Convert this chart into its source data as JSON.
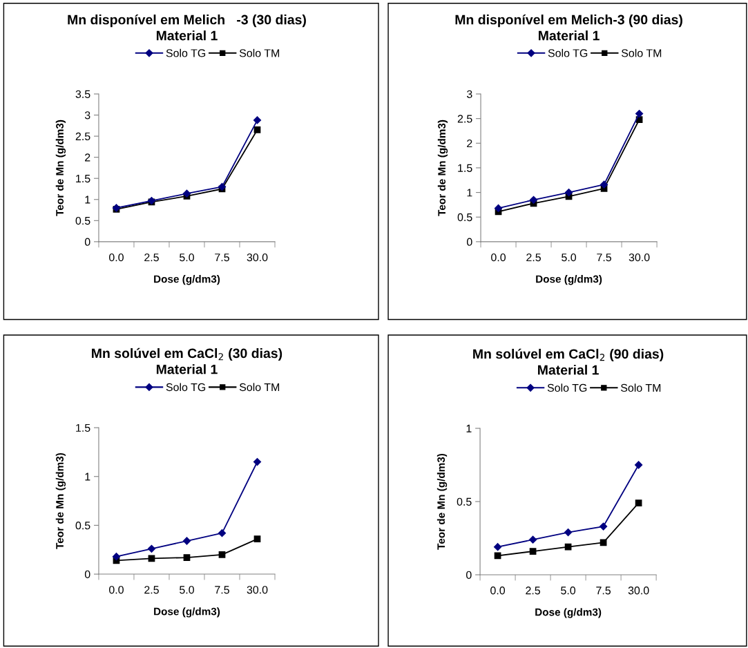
{
  "chart_data": [
    {
      "type": "line",
      "title": "Mn disponível em Melich   -3 (30 dias)\nMaterial 1",
      "xlabel": "Dose (g/dm3)",
      "ylabel": "Teor de Mn (g/dm3)",
      "categories": [
        "0.0",
        "2.5",
        "5.0",
        "7.5",
        "30.0"
      ],
      "ylim": [
        0,
        3.5
      ],
      "yticks": [
        0,
        0.5,
        1,
        1.5,
        2,
        2.5,
        3,
        3.5
      ],
      "grid": false,
      "legend": "top",
      "series": [
        {
          "name": "Solo TG",
          "color": "#000080",
          "marker": "diamond",
          "values": [
            0.8,
            0.97,
            1.14,
            1.3,
            2.88
          ]
        },
        {
          "name": "Solo TM",
          "color": "#000000",
          "marker": "square",
          "values": [
            0.77,
            0.94,
            1.08,
            1.25,
            2.65
          ]
        }
      ]
    },
    {
      "type": "line",
      "title": "Mn disponível em Melich-3 (90 dias)\nMaterial 1",
      "xlabel": "Dose (g/dm3)",
      "ylabel": "Teor de Mn (g/dm3)",
      "categories": [
        "0.0",
        "2.5",
        "5.0",
        "7.5",
        "30.0"
      ],
      "ylim": [
        0,
        3
      ],
      "yticks": [
        0,
        0.5,
        1,
        1.5,
        2,
        2.5,
        3
      ],
      "grid": false,
      "legend": "top",
      "series": [
        {
          "name": "Solo TG",
          "color": "#000080",
          "marker": "diamond",
          "values": [
            0.68,
            0.85,
            1.0,
            1.16,
            2.6
          ]
        },
        {
          "name": "Solo TM",
          "color": "#000000",
          "marker": "square",
          "values": [
            0.61,
            0.78,
            0.92,
            1.08,
            2.48
          ]
        }
      ]
    },
    {
      "type": "line",
      "title": "Mn solúvel em CaCl$_{2}$ (30 dias)\nMaterial 1",
      "xlabel": "Dose (g/dm3)",
      "ylabel": "Teor de Mn (g/dm3)",
      "categories": [
        "0.0",
        "2.5",
        "5.0",
        "7.5",
        "30.0"
      ],
      "ylim": [
        0,
        1.5
      ],
      "yticks": [
        0,
        0.5,
        1,
        1.5
      ],
      "grid": false,
      "legend": "top",
      "series": [
        {
          "name": "Solo TG",
          "color": "#000080",
          "marker": "diamond",
          "values": [
            0.18,
            0.26,
            0.34,
            0.42,
            1.15
          ]
        },
        {
          "name": "Solo TM",
          "color": "#000000",
          "marker": "square",
          "values": [
            0.14,
            0.16,
            0.17,
            0.2,
            0.36
          ]
        }
      ]
    },
    {
      "type": "line",
      "title": "Mn solúvel em CaCl$_{2}$ (90 dias)\nMaterial 1",
      "xlabel": "Dose (g/dm3)",
      "ylabel": "Teor de Mn (g/dm3)",
      "categories": [
        "0.0",
        "2.5",
        "5.0",
        "7.5",
        "30.0"
      ],
      "ylim": [
        0,
        1
      ],
      "yticks": [
        0,
        0.5,
        1
      ],
      "grid": false,
      "legend": "top",
      "series": [
        {
          "name": "Solo TG",
          "color": "#000080",
          "marker": "diamond",
          "values": [
            0.19,
            0.24,
            0.29,
            0.33,
            0.75
          ]
        },
        {
          "name": "Solo TM",
          "color": "#000000",
          "marker": "square",
          "values": [
            0.13,
            0.16,
            0.19,
            0.22,
            0.49
          ]
        }
      ]
    }
  ]
}
